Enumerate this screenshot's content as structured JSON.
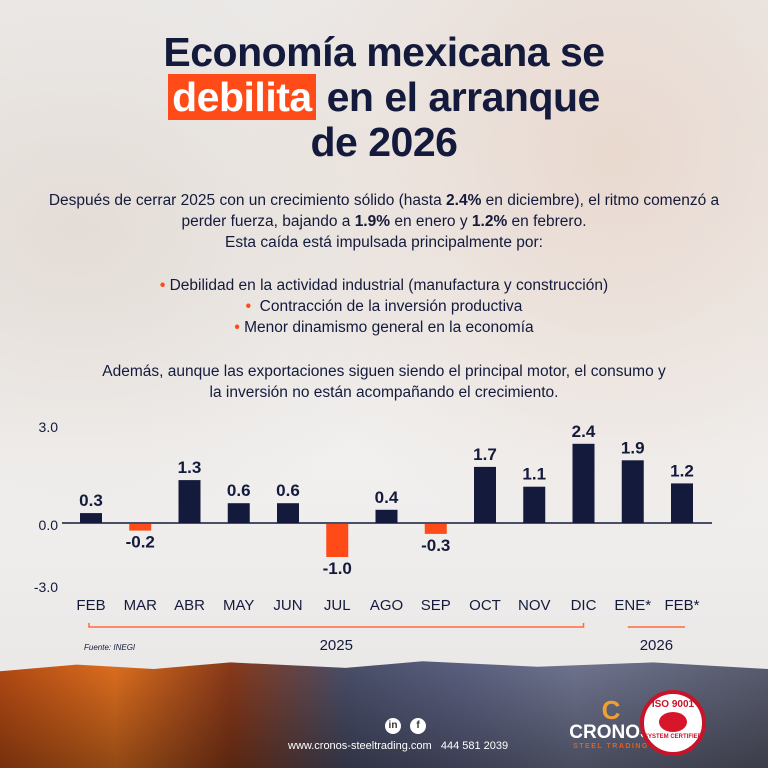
{
  "title": {
    "line1": "Economía mexicana se",
    "highlight": "debilita",
    "line2_rest": "en el arranque",
    "line3": "de 2026"
  },
  "intro": {
    "part1": "Después de cerrar 2025 con un crecimiento sólido (hasta ",
    "b1": "2.4%",
    "part2": " en diciembre), el ritmo comenzó a perder fuerza, bajando a ",
    "b2": "1.9%",
    "part3": " en enero y ",
    "b3": "1.2%",
    "part4": " en febrero.",
    "line3": "Esta caída está impulsada principalmente por:"
  },
  "bullets": [
    "Debilidad en la actividad industrial (manufactura y construcción)",
    "Contracción de la inversión productiva",
    "Menor dinamismo general en la economía"
  ],
  "closing": "Además, aunque las exportaciones siguen siendo el principal motor, el consumo y la inversión no están acompañando el crecimiento.",
  "chart_data": {
    "type": "bar",
    "categories": [
      "FEB",
      "MAR",
      "ABR",
      "MAY",
      "JUN",
      "JUL",
      "AGO",
      "SEP",
      "OCT",
      "NOV",
      "DIC",
      "ENE*",
      "FEB*"
    ],
    "values": [
      0.3,
      -0.2,
      1.3,
      0.6,
      0.6,
      -1.0,
      0.4,
      -0.3,
      1.7,
      1.1,
      2.4,
      1.9,
      1.2
    ],
    "data_labels": [
      "0.3",
      "-0.2",
      "1.3",
      "0.6",
      "0.6",
      "-1.0",
      "0.4",
      "-0.3",
      "1.7",
      "1.1",
      "2.4",
      "1.9",
      "1.2"
    ],
    "y_ticks": [
      "3.0",
      "0.0",
      "-3.0"
    ],
    "ylim": [
      -3.0,
      3.0
    ],
    "groups": [
      {
        "label": "2025",
        "from": "FEB",
        "to": "DIC"
      },
      {
        "label": "2026",
        "from": "ENE*",
        "to": "FEB*"
      }
    ],
    "source": "Fuente: INEGI",
    "grid": false,
    "colors": {
      "positive": "#141a3c",
      "negative": "#ff4b17"
    }
  },
  "footer": {
    "website": "www.cronos-steeltrading.com",
    "phone": "444 581 2039",
    "social": [
      "linkedin-icon",
      "facebook-icon"
    ],
    "social_glyphs": [
      "in",
      "f"
    ],
    "brand": "CRONOS",
    "brand_sub": "STEEL TRADING",
    "iso_top": "ISO 9001",
    "iso_bottom": "SYSTEM CERTIFIED"
  }
}
